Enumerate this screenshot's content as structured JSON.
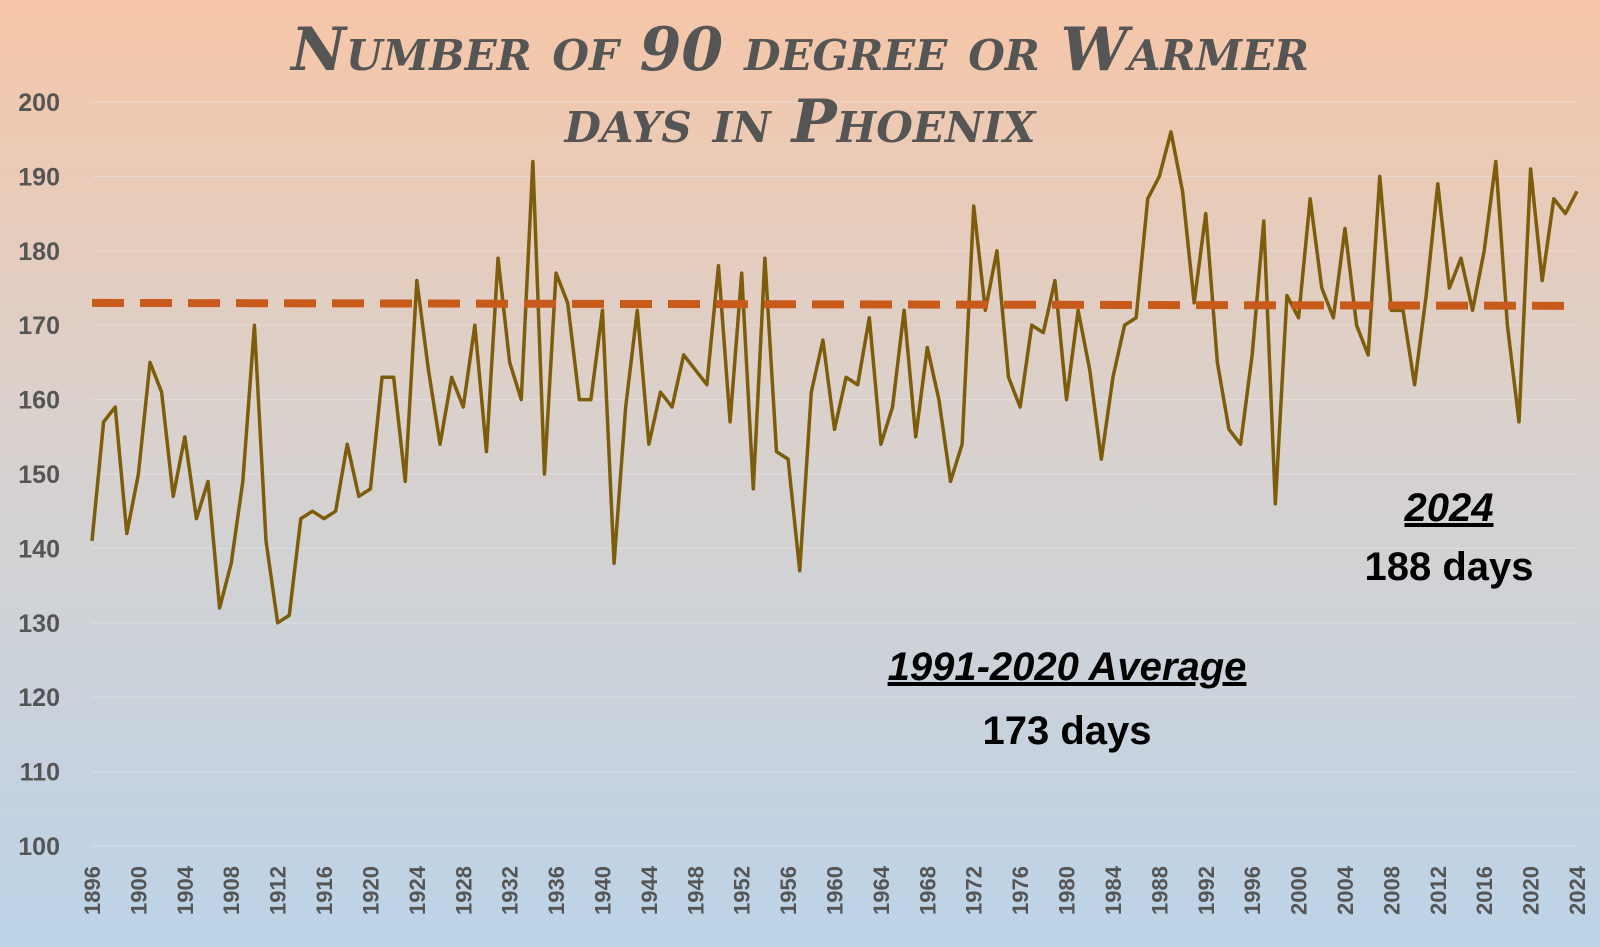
{
  "chart_data": {
    "type": "line",
    "title_lines": [
      "Number of 90 degree or Warmer",
      "days in Phoenix"
    ],
    "xlabel": "",
    "ylabel": "",
    "ylim": [
      100,
      200
    ],
    "yticks": [
      100,
      110,
      120,
      130,
      140,
      150,
      160,
      170,
      180,
      190,
      200
    ],
    "xtick_labels": [
      "1896",
      "1900",
      "1904",
      "1908",
      "1912",
      "1916",
      "1920",
      "1924",
      "1928",
      "1932",
      "1936",
      "1940",
      "1944",
      "1948",
      "1952",
      "1956",
      "1960",
      "1964",
      "1968",
      "1972",
      "1976",
      "1980",
      "1984",
      "1988",
      "1992",
      "1996",
      "2000",
      "2004",
      "2008",
      "2012",
      "2016",
      "2020",
      "2024"
    ],
    "x_start": 1896,
    "x_end": 2024,
    "grid": true,
    "series": [
      {
        "color": "#7d5c0b",
        "x": [
          1896,
          1897,
          1898,
          1899,
          1900,
          1901,
          1902,
          1903,
          1904,
          1905,
          1906,
          1907,
          1908,
          1909,
          1910,
          1911,
          1912,
          1913,
          1914,
          1915,
          1916,
          1917,
          1918,
          1919,
          1920,
          1921,
          1922,
          1923,
          1924,
          1925,
          1926,
          1927,
          1928,
          1929,
          1930,
          1931,
          1932,
          1933,
          1934,
          1935,
          1936,
          1937,
          1938,
          1939,
          1940,
          1941,
          1942,
          1943,
          1944,
          1945,
          1946,
          1947,
          1948,
          1949,
          1950,
          1951,
          1952,
          1953,
          1954,
          1955,
          1956,
          1957,
          1958,
          1959,
          1960,
          1961,
          1962,
          1963,
          1964,
          1965,
          1966,
          1967,
          1968,
          1969,
          1970,
          1971,
          1972,
          1973,
          1974,
          1975,
          1976,
          1977,
          1978,
          1979,
          1980,
          1981,
          1982,
          1983,
          1984,
          1985,
          1986,
          1987,
          1988,
          1989,
          1990,
          1991,
          1992,
          1993,
          1994,
          1995,
          1996,
          1997,
          1998,
          1999,
          2000,
          2001,
          2002,
          2003,
          2004,
          2005,
          2006,
          2007,
          2008,
          2009,
          2010,
          2011,
          2012,
          2013,
          2014,
          2015,
          2016,
          2017,
          2018,
          2019,
          2020,
          2021,
          2022,
          2023,
          2024
        ],
        "y": [
          141,
          157,
          159,
          142,
          150,
          165,
          161,
          147,
          155,
          144,
          149,
          132,
          138,
          149,
          170,
          141,
          130,
          131,
          144,
          145,
          144,
          145,
          154,
          147,
          148,
          163,
          163,
          149,
          176,
          164,
          154,
          163,
          159,
          170,
          153,
          179,
          165,
          160,
          192,
          150,
          177,
          173,
          160,
          160,
          172,
          138,
          159,
          172,
          154,
          161,
          159,
          166,
          164,
          162,
          178,
          157,
          177,
          148,
          179,
          153,
          152,
          137,
          161,
          168,
          156,
          163,
          162,
          171,
          154,
          159,
          172,
          155,
          167,
          160,
          149,
          154,
          186,
          172,
          180,
          163,
          159,
          170,
          169,
          176,
          160,
          172,
          164,
          152,
          163,
          170,
          171,
          187,
          190,
          196,
          188,
          173,
          185,
          165,
          156,
          154,
          166,
          184,
          146,
          174,
          171,
          187,
          175,
          171,
          183,
          170,
          166,
          190,
          172,
          172,
          162,
          174,
          189,
          175,
          179,
          172,
          180,
          192,
          170,
          157,
          191,
          176,
          187,
          185,
          188
        ]
      },
      {
        "color": "#c85a1c",
        "dashed": true,
        "x": [
          1896,
          2024
        ],
        "y": [
          173,
          172.6
        ]
      }
    ],
    "annotations": [
      {
        "heading": "2024",
        "value": "188 days"
      },
      {
        "heading": "1991-2020 Average",
        "value": "173 days"
      }
    ]
  }
}
